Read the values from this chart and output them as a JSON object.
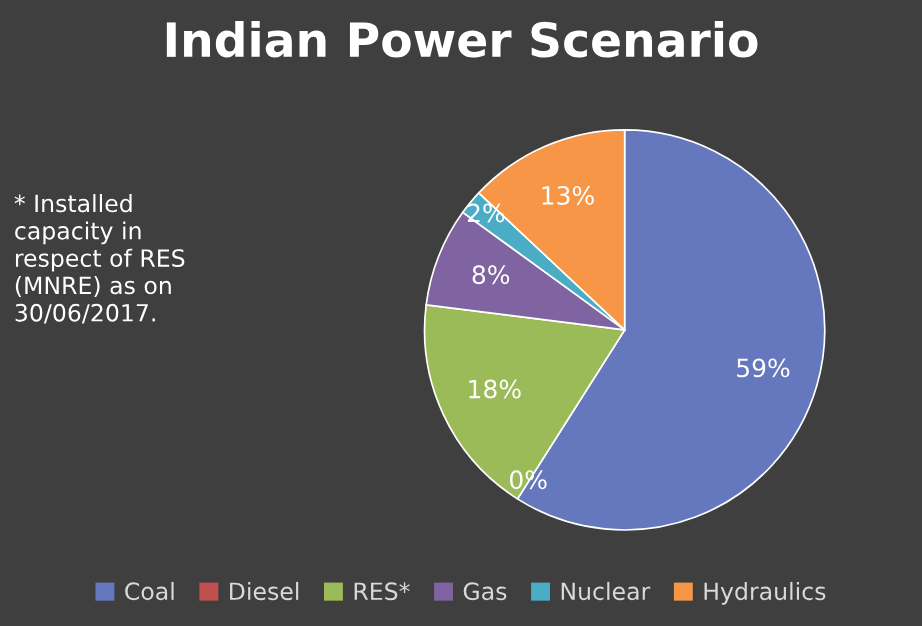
{
  "chart_data": {
    "type": "pie",
    "title": "Indian Power Scenario",
    "categories": [
      "Coal",
      "Diesel",
      "RES*",
      "Gas",
      "Nuclear",
      "Hydraulics"
    ],
    "values": [
      59,
      0,
      18,
      8,
      2,
      13
    ],
    "value_labels": [
      "59%",
      "0%",
      "18%",
      "8%",
      "2%",
      "13%"
    ],
    "colors": [
      "#6578bd",
      "#c0504d",
      "#9bbb59",
      "#8064a2",
      "#4bacc6",
      "#f79646"
    ],
    "annotations": [
      "* Installed\ncapacity in\nrespect of RES\n(MNRE) as on\n30/06/2017."
    ],
    "legend": "bottom"
  }
}
